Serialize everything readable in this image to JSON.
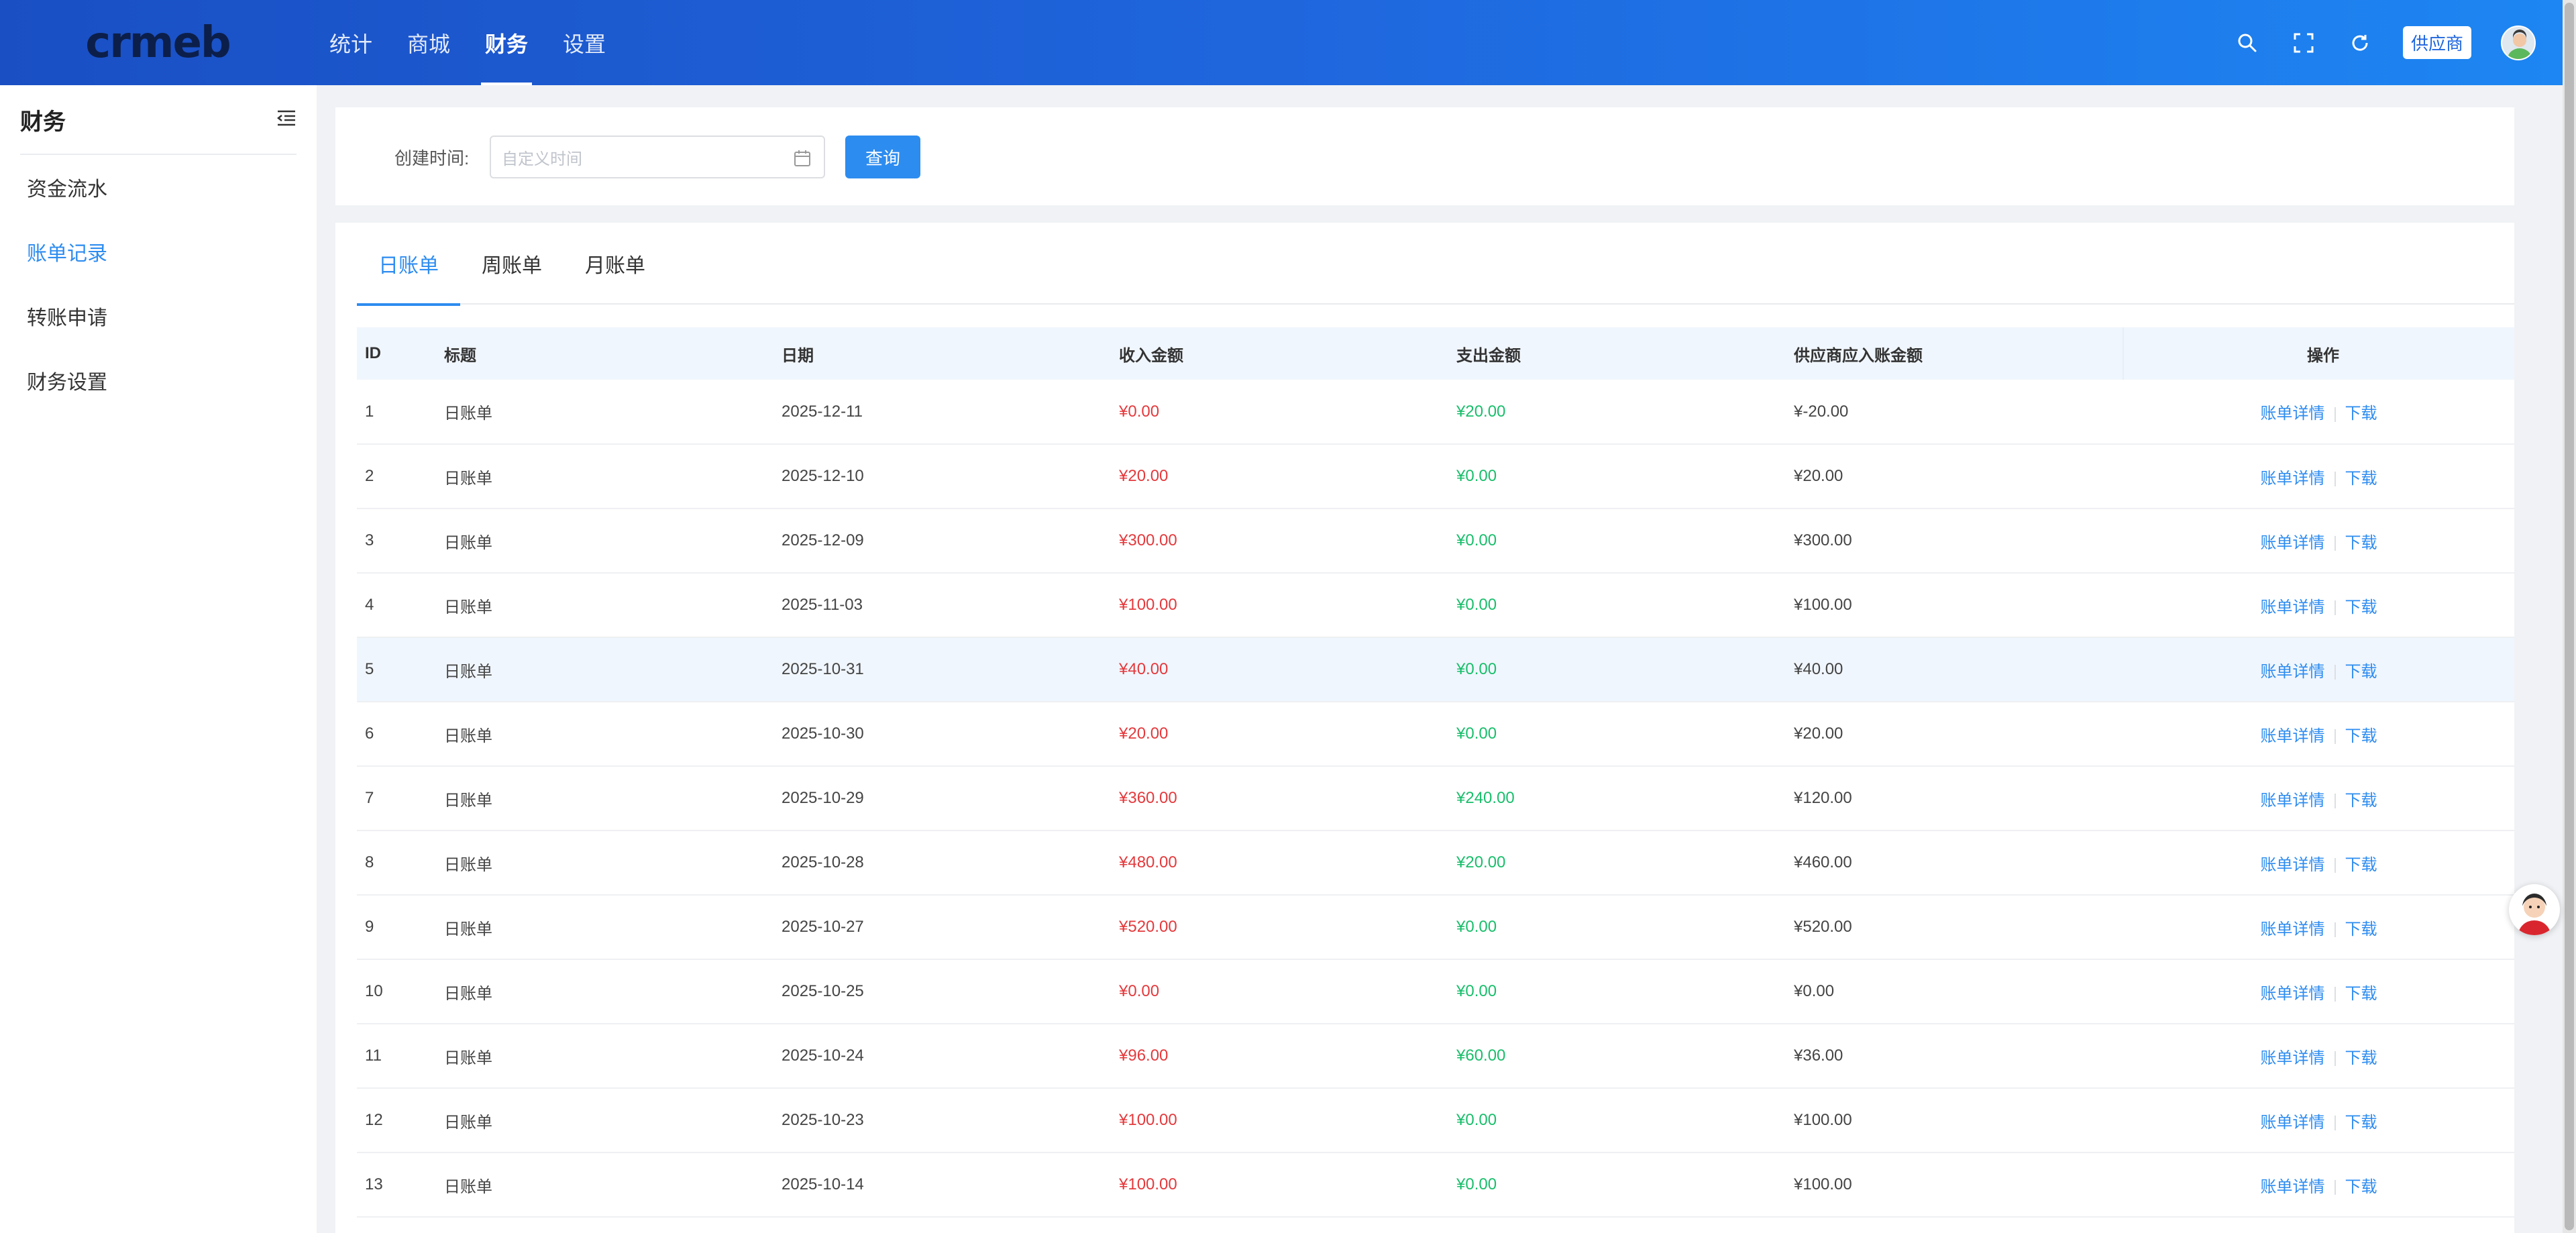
{
  "header": {
    "logo": "crmeb",
    "nav": [
      {
        "label": "统计"
      },
      {
        "label": "商城"
      },
      {
        "label": "财务"
      },
      {
        "label": "设置"
      }
    ],
    "supplier_badge": "供应商"
  },
  "sidebar": {
    "title": "财务",
    "items": [
      {
        "label": "资金流水"
      },
      {
        "label": "账单记录"
      },
      {
        "label": "转账申请"
      },
      {
        "label": "财务设置"
      }
    ]
  },
  "filter": {
    "label": "创建时间:",
    "placeholder": "自定义时间",
    "query_label": "查询"
  },
  "tabs": [
    {
      "label": "日账单"
    },
    {
      "label": "周账单"
    },
    {
      "label": "月账单"
    }
  ],
  "table": {
    "columns": [
      "ID",
      "标题",
      "日期",
      "收入金额",
      "支出金额",
      "供应商应入账金额",
      "操作"
    ],
    "detail_label": "账单详情",
    "download_label": "下载",
    "rows": [
      {
        "id": "1",
        "title": "日账单",
        "date": "2025-12-11",
        "income": "¥0.00",
        "expense": "¥20.00",
        "net": "¥-20.00"
      },
      {
        "id": "2",
        "title": "日账单",
        "date": "2025-12-10",
        "income": "¥20.00",
        "expense": "¥0.00",
        "net": "¥20.00"
      },
      {
        "id": "3",
        "title": "日账单",
        "date": "2025-12-09",
        "income": "¥300.00",
        "expense": "¥0.00",
        "net": "¥300.00"
      },
      {
        "id": "4",
        "title": "日账单",
        "date": "2025-11-03",
        "income": "¥100.00",
        "expense": "¥0.00",
        "net": "¥100.00"
      },
      {
        "id": "5",
        "title": "日账单",
        "date": "2025-10-31",
        "income": "¥40.00",
        "expense": "¥0.00",
        "net": "¥40.00"
      },
      {
        "id": "6",
        "title": "日账单",
        "date": "2025-10-30",
        "income": "¥20.00",
        "expense": "¥0.00",
        "net": "¥20.00"
      },
      {
        "id": "7",
        "title": "日账单",
        "date": "2025-10-29",
        "income": "¥360.00",
        "expense": "¥240.00",
        "net": "¥120.00"
      },
      {
        "id": "8",
        "title": "日账单",
        "date": "2025-10-28",
        "income": "¥480.00",
        "expense": "¥20.00",
        "net": "¥460.00"
      },
      {
        "id": "9",
        "title": "日账单",
        "date": "2025-10-27",
        "income": "¥520.00",
        "expense": "¥0.00",
        "net": "¥520.00"
      },
      {
        "id": "10",
        "title": "日账单",
        "date": "2025-10-25",
        "income": "¥0.00",
        "expense": "¥0.00",
        "net": "¥0.00"
      },
      {
        "id": "11",
        "title": "日账单",
        "date": "2025-10-24",
        "income": "¥96.00",
        "expense": "¥60.00",
        "net": "¥36.00"
      },
      {
        "id": "12",
        "title": "日账单",
        "date": "2025-10-23",
        "income": "¥100.00",
        "expense": "¥0.00",
        "net": "¥100.00"
      },
      {
        "id": "13",
        "title": "日账单",
        "date": "2025-10-14",
        "income": "¥100.00",
        "expense": "¥0.00",
        "net": "¥100.00"
      }
    ]
  },
  "colors": {
    "accent": "#2d8cf0",
    "income": "#e4393c",
    "expense": "#19be6b"
  }
}
